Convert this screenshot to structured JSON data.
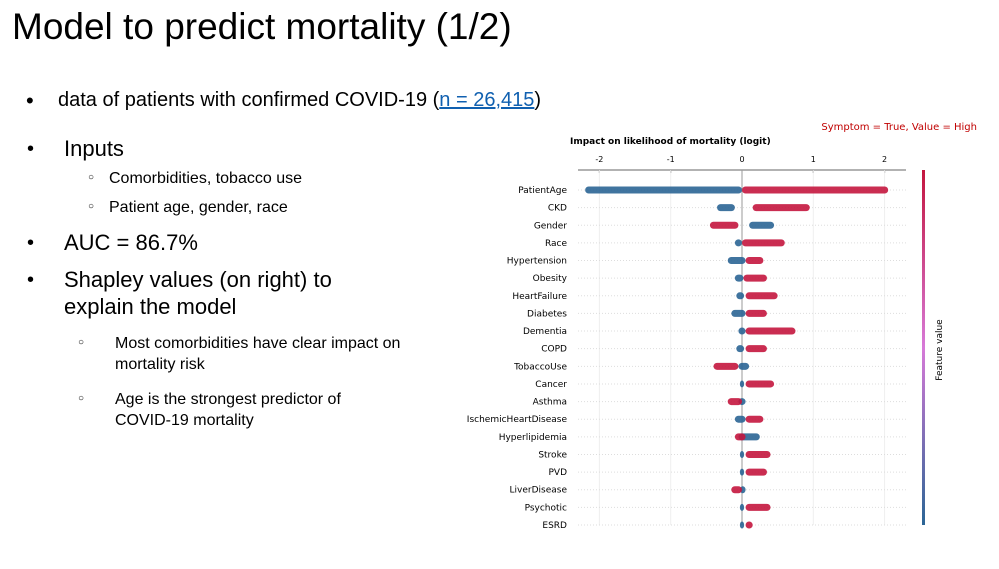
{
  "slide": {
    "title": "Model to predict mortality (1/2)",
    "bullets": [
      {
        "text": "data of patients with confirmed COVID-19 (",
        "link": "n = 26,415",
        "tail": ")"
      },
      {
        "text": "Inputs",
        "subs": [
          "Comorbidities, tobacco use",
          "Patient age, gender, race"
        ]
      },
      {
        "text": "AUC = 86.7%"
      },
      {
        "text": "Shapley values (on right) to explain the model",
        "subs": [
          "Most comorbidities have clear impact on mortality risk",
          "Age is the strongest predictor of COVID-19 mortality"
        ]
      }
    ]
  },
  "chart_data": {
    "type": "beeswarm",
    "title": "Impact on likelihood of mortality (logit)",
    "annotation": "Symptom = True, Value = High",
    "colorbar_label": "Feature value",
    "categories": [
      "PatientAge",
      "CKD",
      "Gender",
      "Race",
      "Hypertension",
      "Obesity",
      "HeartFailure",
      "Diabetes",
      "Dementia",
      "COPD",
      "TobaccoUse",
      "Cancer",
      "Asthma",
      "IschemicHeartDisease",
      "Hyperlipidemia",
      "Stroke",
      "PVD",
      "LiverDisease",
      "Psychotic",
      "ESRD"
    ],
    "low_min": [
      -2.2,
      -0.35,
      0.1,
      -0.1,
      -0.2,
      -0.1,
      -0.08,
      -0.15,
      -0.05,
      -0.08,
      -0.05,
      -0.03,
      -0.05,
      -0.1,
      -0.05,
      -0.03,
      -0.03,
      -0.03,
      -0.03,
      -0.03
    ],
    "low_max": [
      0,
      -0.1,
      0.45,
      0,
      0.05,
      0.02,
      0.03,
      0.05,
      0.05,
      0.03,
      0.1,
      0.03,
      0.05,
      0.05,
      0.25,
      0.03,
      0.03,
      0.05,
      0.03,
      0.03
    ],
    "high_min": [
      0,
      0.15,
      -0.45,
      0,
      0.05,
      0.02,
      0.05,
      0.05,
      0.05,
      0.05,
      -0.4,
      0.05,
      -0.2,
      0.05,
      -0.1,
      0.05,
      0.05,
      -0.15,
      0.05,
      0.05
    ],
    "high_max": [
      2.05,
      0.95,
      -0.05,
      0.6,
      0.3,
      0.35,
      0.5,
      0.35,
      0.75,
      0.35,
      -0.05,
      0.45,
      0,
      0.3,
      0.05,
      0.4,
      0.35,
      0,
      0.4,
      0.15
    ],
    "low_color": "#2b6595",
    "high_color": "#c4163e",
    "xlim": [
      -2.3,
      2.3
    ],
    "xticks": [
      -2,
      -1,
      0,
      1,
      2
    ],
    "grid": true
  }
}
